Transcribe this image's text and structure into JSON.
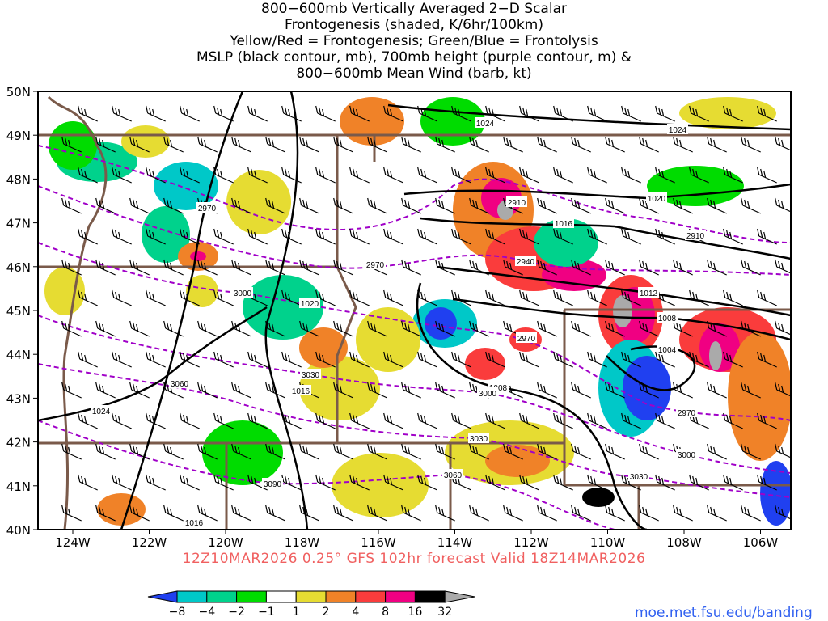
{
  "title_lines": [
    "800−600mb Vertically Averaged 2−D Scalar",
    "Frontogenesis (shaded, K/6hr/100km)",
    "Yellow/Red = Frontogenesis;  Green/Blue = Frontolysis",
    "MSLP (black contour, mb), 700mb height (purple contour, m) &",
    "800−600mb Mean Wind (barb, kt)"
  ],
  "lat_labels": [
    "50N",
    "49N",
    "48N",
    "47N",
    "46N",
    "45N",
    "44N",
    "43N",
    "42N",
    "41N",
    "40N"
  ],
  "lon_labels": [
    "124W",
    "122W",
    "120W",
    "118W",
    "116W",
    "114W",
    "112W",
    "110W",
    "108W",
    "106W"
  ],
  "mslp_labels": [
    "1024",
    "1024",
    "1020",
    "1016",
    "1012",
    "1008",
    "1004",
    "1008",
    "1020",
    "1016",
    "1024",
    "1016"
  ],
  "height_labels": [
    "2970",
    "2910",
    "2910",
    "2940",
    "2970",
    "3000",
    "2970",
    "3030",
    "3000",
    "3060",
    "2970",
    "3000",
    "3030",
    "3030",
    "3060",
    "3090"
  ],
  "valid_text": "12Z10MAR2026 0.25° GFS 102hr forecast Valid 18Z14MAR2026",
  "credit": "moe.met.fsu.edu/banding",
  "colorbar": {
    "labels": [
      "−8",
      "−4",
      "−2",
      "−1",
      "1",
      "2",
      "4",
      "8",
      "16",
      "32"
    ],
    "colors": [
      "#2040f0",
      "#00c8c8",
      "#00d28c",
      "#00dc00",
      "#ffffff",
      "#e6dc32",
      "#f08228",
      "#fa3c3c",
      "#f00082",
      "#000000",
      "#aaaaaa"
    ]
  },
  "colors": {
    "mslp": "#000000",
    "height": "#a000c8",
    "borders": "#7a5a4a"
  }
}
